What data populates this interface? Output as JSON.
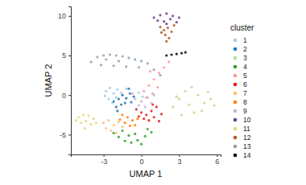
{
  "chart_data": {
    "type": "scatter",
    "x_label": "UMAP 1",
    "y_label": "UMAP 2",
    "legend_title": "cluster",
    "legend": "right",
    "grid": false,
    "marker": "circle",
    "xlim": [
      -5.6,
      6.3
    ],
    "ylim": [
      -7.5,
      11.2
    ],
    "xticks": [
      -3,
      0,
      3,
      6
    ],
    "yticks": [
      -5,
      0,
      5,
      10
    ],
    "series": [
      {
        "name": "1",
        "color": "#a6cee3",
        "x": [
          -2.8,
          -2.5,
          -2.2,
          -1.9,
          -2.6,
          -2.0,
          -1.6,
          -2.3,
          -1.2,
          -0.2,
          0.1,
          -2.9
        ],
        "values": [
          0.5,
          0.9,
          0.2,
          0.7,
          -0.5,
          -0.3,
          0.3,
          -1.0,
          0.8,
          0.3,
          -0.2,
          -0.1
        ]
      },
      {
        "name": "2",
        "color": "#1f78b4",
        "x": [
          -2.2,
          -1.8,
          -1.5,
          -1.2,
          -0.9,
          -1.6,
          -2.0,
          -1.3,
          -0.8,
          -1.0,
          -1.9,
          -0.6
        ],
        "values": [
          -0.8,
          -0.5,
          0.0,
          -0.4,
          0.2,
          -1.2,
          -1.5,
          -1.0,
          -0.9,
          0.8,
          -2.0,
          -0.2
        ]
      },
      {
        "name": "3",
        "color": "#b2df8a",
        "x": [
          2.5,
          3.0,
          3.5,
          4.0,
          4.5,
          5.0,
          5.5,
          5.8,
          4.2,
          3.2,
          4.8,
          3.8,
          2.8,
          5.3
        ],
        "values": [
          -1.5,
          -0.5,
          0.5,
          1.0,
          0.0,
          -1.0,
          -0.5,
          -1.3,
          -2.2,
          -2.5,
          -2.0,
          -1.2,
          -0.2,
          0.4
        ]
      },
      {
        "name": "4",
        "color": "#33a02c",
        "x": [
          -2.2,
          -1.8,
          -1.3,
          -0.8,
          -0.3,
          0.3,
          0.8,
          -1.5,
          -0.5,
          0.0,
          -1.0,
          0.5
        ],
        "values": [
          -4.8,
          -5.3,
          -5.8,
          -6.0,
          -5.7,
          -5.2,
          -4.7,
          -4.5,
          -4.9,
          -6.2,
          -5.1,
          -4.3
        ]
      },
      {
        "name": "5",
        "color": "#fb9a99",
        "x": [
          0.2,
          0.6,
          1.0,
          1.4,
          1.8,
          0.9,
          1.3,
          0.4,
          2.2,
          0.7
        ],
        "values": [
          0.5,
          1.2,
          2.0,
          2.8,
          3.5,
          0.2,
          1.0,
          -0.3,
          4.2,
          3.0
        ]
      },
      {
        "name": "6",
        "color": "#e31a1c",
        "x": [
          -0.4,
          0.0,
          0.4,
          0.8,
          1.2,
          1.6,
          0.2,
          0.6,
          1.0,
          1.4,
          -0.2,
          0.9
        ],
        "values": [
          -1.8,
          -2.2,
          -2.5,
          -2.0,
          -1.5,
          -2.4,
          -3.0,
          -3.2,
          -2.8,
          -3.3,
          -2.7,
          -1.2
        ]
      },
      {
        "name": "7",
        "color": "#fdbf6f",
        "x": [
          -3.0,
          -2.6,
          -2.2,
          -1.8,
          -2.8,
          -2.4,
          -1.5,
          -2.0
        ],
        "values": [
          -3.5,
          -3.2,
          -3.8,
          -3.4,
          -4.2,
          -4.5,
          -4.0,
          -4.8
        ]
      },
      {
        "name": "8",
        "color": "#ff7f00",
        "x": [
          -1.5,
          -1.1,
          -0.7,
          -0.3,
          -1.3,
          -0.9,
          -0.5,
          -1.7
        ],
        "values": [
          -2.5,
          -2.8,
          -3.2,
          -3.0,
          -3.5,
          -3.9,
          -3.8,
          -3.1
        ]
      },
      {
        "name": "9",
        "color": "#cab2d6",
        "x": [
          -0.5,
          0.0,
          0.5,
          1.0,
          -0.2,
          0.3,
          0.8,
          -0.7
        ],
        "values": [
          -0.5,
          -0.8,
          -0.3,
          0.0,
          -1.3,
          -1.5,
          -1.0,
          0.2
        ]
      },
      {
        "name": "10",
        "color": "#6a3d9a",
        "x": [
          1.0,
          1.5,
          2.0,
          2.5,
          3.0,
          1.3,
          1.8,
          2.3,
          2.8,
          2.0
        ],
        "values": [
          9.8,
          10.1,
          10.3,
          10.0,
          9.8,
          9.4,
          9.3,
          9.6,
          9.2,
          9.0
        ]
      },
      {
        "name": "11",
        "color": "#e6d57a",
        "x": [
          -5.0,
          -4.6,
          -4.2,
          -3.8,
          -4.8,
          -4.4,
          -4.0,
          -3.6,
          -5.2,
          -4.5
        ],
        "values": [
          -2.8,
          -2.5,
          -2.6,
          -3.0,
          -3.5,
          -3.3,
          -3.7,
          -3.5,
          -3.2,
          -4.2
        ]
      },
      {
        "name": "12",
        "color": "#b15928",
        "x": [
          1.5,
          1.8,
          2.1,
          2.4,
          1.9,
          2.2,
          1.6,
          2.6,
          2.0
        ],
        "values": [
          8.6,
          8.2,
          8.5,
          8.0,
          7.6,
          7.2,
          7.9,
          8.8,
          6.8
        ]
      },
      {
        "name": "13",
        "color": "#8da0b0",
        "x": [
          -4.0,
          -3.5,
          -3.0,
          -2.5,
          -2.0,
          -1.5,
          -1.0,
          -0.5,
          0.0,
          0.5,
          -3.2,
          -2.2,
          -1.2,
          -0.2,
          1.0,
          -2.8,
          -1.8,
          1.5
        ],
        "values": [
          4.2,
          4.8,
          5.0,
          5.1,
          5.0,
          4.9,
          4.7,
          4.5,
          4.3,
          4.0,
          3.8,
          3.7,
          3.6,
          3.5,
          3.2,
          4.5,
          4.3,
          2.5
        ]
      },
      {
        "name": "14",
        "color": "#000000",
        "x": [
          2.0,
          2.4,
          2.8,
          3.2,
          3.5
        ],
        "values": [
          5.0,
          5.1,
          5.2,
          5.3,
          5.4
        ]
      }
    ]
  }
}
